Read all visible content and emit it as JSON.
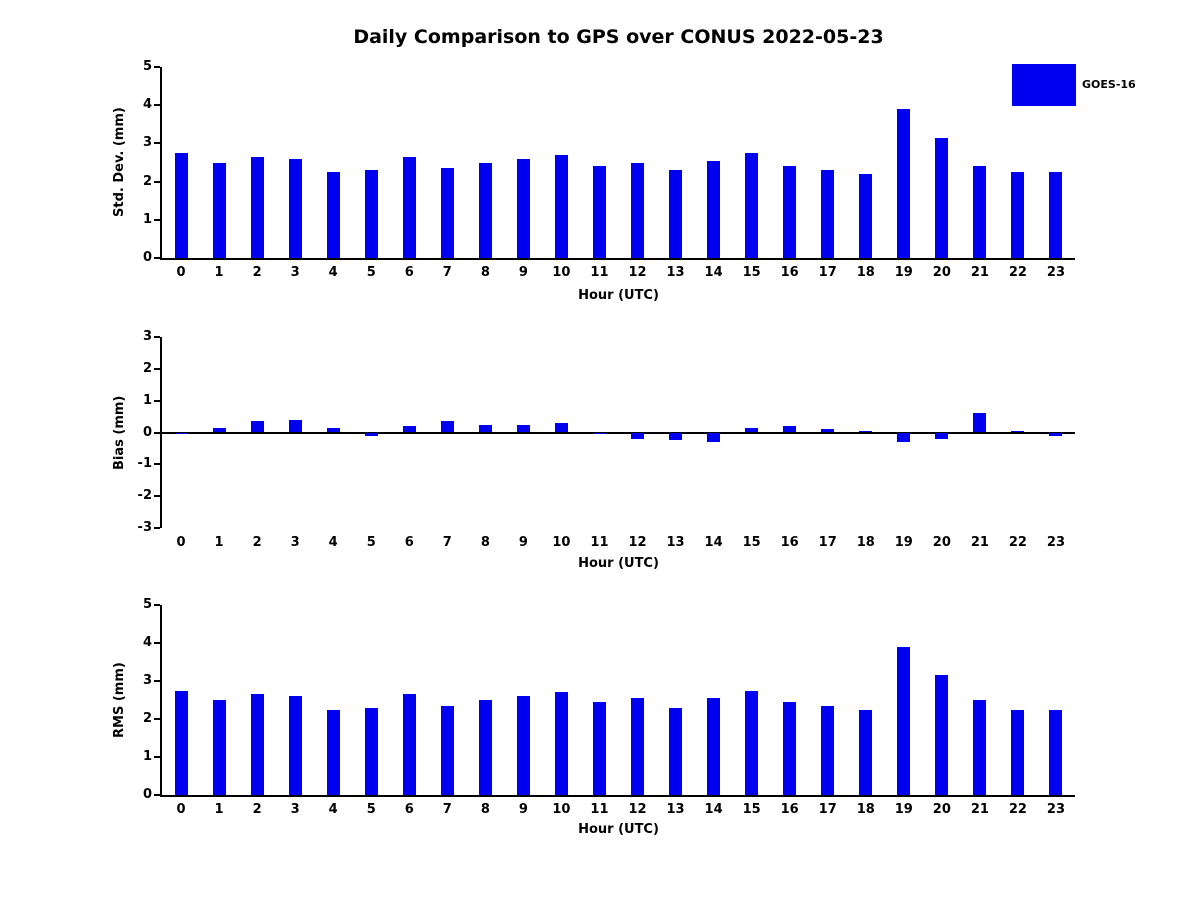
{
  "title": "Daily Comparison to GPS over CONUS 2022-05-23",
  "legend": {
    "label": "GOES-16"
  },
  "colors": {
    "bar": "#0000f0",
    "axis": "#000000"
  },
  "chart_data": [
    {
      "type": "bar",
      "name": "std-dev-panel",
      "ylabel": "Std. Dev. (mm)",
      "xlabel": "Hour (UTC)",
      "ylim": [
        0,
        5
      ],
      "yticks": [
        0,
        1,
        2,
        3,
        4,
        5
      ],
      "categories": [
        "0",
        "1",
        "2",
        "3",
        "4",
        "5",
        "6",
        "7",
        "8",
        "9",
        "10",
        "11",
        "12",
        "13",
        "14",
        "15",
        "16",
        "17",
        "18",
        "19",
        "20",
        "21",
        "22",
        "23"
      ],
      "series": [
        {
          "name": "GOES-16",
          "values": [
            2.75,
            2.5,
            2.65,
            2.6,
            2.25,
            2.3,
            2.65,
            2.35,
            2.5,
            2.6,
            2.7,
            2.4,
            2.5,
            2.3,
            2.55,
            2.75,
            2.4,
            2.3,
            2.2,
            3.9,
            3.15,
            2.4,
            2.25,
            2.25
          ]
        }
      ],
      "grid": false,
      "legend_position": "top-right-outside"
    },
    {
      "type": "bar",
      "name": "bias-panel",
      "ylabel": "Bias (mm)",
      "xlabel": "Hour (UTC)",
      "ylim": [
        -3,
        3
      ],
      "yticks": [
        -3,
        -2,
        -1,
        0,
        1,
        2,
        3
      ],
      "categories": [
        "0",
        "1",
        "2",
        "3",
        "4",
        "5",
        "6",
        "7",
        "8",
        "9",
        "10",
        "11",
        "12",
        "13",
        "14",
        "15",
        "16",
        "17",
        "18",
        "19",
        "20",
        "21",
        "22",
        "23"
      ],
      "series": [
        {
          "name": "GOES-16",
          "values": [
            -0.05,
            0.15,
            0.35,
            0.4,
            0.15,
            -0.1,
            0.2,
            0.35,
            0.25,
            0.25,
            0.3,
            -0.05,
            -0.2,
            -0.25,
            -0.3,
            0.15,
            0.2,
            0.1,
            0.05,
            -0.3,
            -0.2,
            0.6,
            0.05,
            -0.1
          ]
        }
      ],
      "grid": false
    },
    {
      "type": "bar",
      "name": "rms-panel",
      "ylabel": "RMS (mm)",
      "xlabel": "Hour (UTC)",
      "ylim": [
        0,
        5
      ],
      "yticks": [
        0,
        1,
        2,
        3,
        4,
        5
      ],
      "categories": [
        "0",
        "1",
        "2",
        "3",
        "4",
        "5",
        "6",
        "7",
        "8",
        "9",
        "10",
        "11",
        "12",
        "13",
        "14",
        "15",
        "16",
        "17",
        "18",
        "19",
        "20",
        "21",
        "22",
        "23"
      ],
      "series": [
        {
          "name": "GOES-16",
          "values": [
            2.75,
            2.5,
            2.65,
            2.6,
            2.25,
            2.3,
            2.65,
            2.35,
            2.5,
            2.6,
            2.7,
            2.45,
            2.55,
            2.3,
            2.55,
            2.75,
            2.45,
            2.35,
            2.25,
            3.9,
            3.15,
            2.5,
            2.25,
            2.25
          ]
        }
      ],
      "grid": false
    }
  ]
}
